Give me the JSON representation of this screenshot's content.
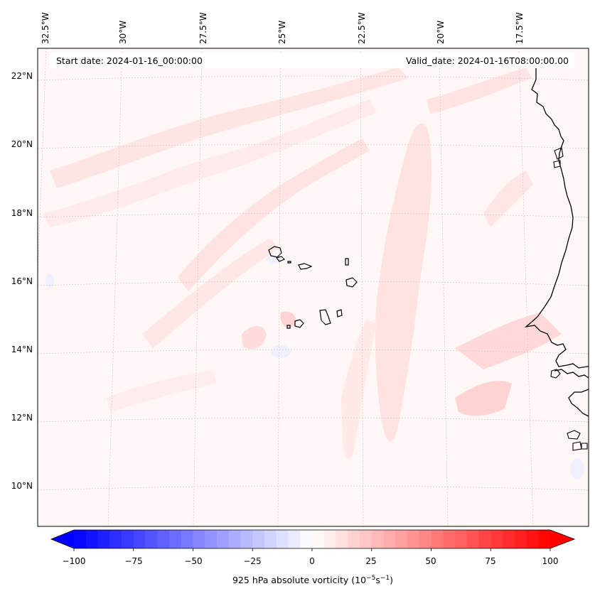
{
  "header": {
    "start_date": "Start date: 2024-01-16_00:00:00",
    "valid_date": "Valid_date: 2024-01-16T08:00:00.00"
  },
  "map": {
    "lon_labels": [
      "32.5°W",
      "30°W",
      "27.5°W",
      "25°W",
      "22.5°W",
      "20°W",
      "17.5°W"
    ],
    "lat_labels": [
      "22°N",
      "20°N",
      "18°N",
      "16°N",
      "14°N",
      "12°N",
      "10°N"
    ],
    "extent": {
      "lon_min": -33.0,
      "lon_max": -15.5,
      "lat_min": 9.0,
      "lat_max": 22.8
    },
    "colors": {
      "field_background": "#fff6f6",
      "coastline": "#000000",
      "gridline": "#c8c8c8"
    }
  },
  "colorbar": {
    "ticks": [
      "−100",
      "−75",
      "−50",
      "−25",
      "0",
      "25",
      "50",
      "75",
      "100"
    ],
    "min": -100,
    "max": 100,
    "step": 5,
    "cmap": "bwr",
    "label_prefix": "925 hPa absolute vorticity (10",
    "label_exp1": "−5",
    "label_mid": "s",
    "label_exp2": "−1",
    "label_suffix": ")"
  }
}
